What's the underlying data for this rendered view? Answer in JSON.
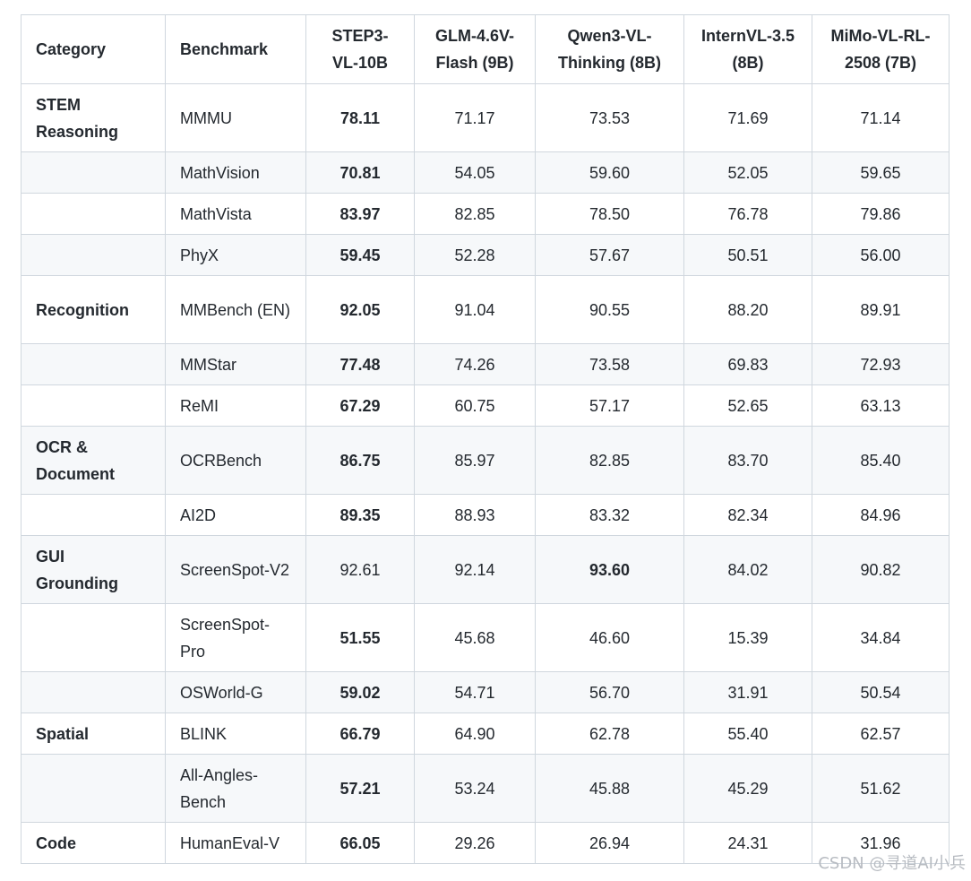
{
  "table": {
    "headers": [
      "Category",
      "Benchmark",
      "STEP3-VL-10B",
      "GLM-4.6V-Flash (9B)",
      "Qwen3-VL-Thinking (8B)",
      "InternVL-3.5 (8B)",
      "MiMo-VL-RL-2508 (7B)"
    ],
    "rows": [
      {
        "category": "STEM Reasoning",
        "benchmark": "MMMU",
        "values": [
          "78.11",
          "71.17",
          "73.53",
          "71.69",
          "71.14"
        ],
        "best": 0
      },
      {
        "category": "",
        "benchmark": "MathVision",
        "values": [
          "70.81",
          "54.05",
          "59.60",
          "52.05",
          "59.65"
        ],
        "best": 0
      },
      {
        "category": "",
        "benchmark": "MathVista",
        "values": [
          "83.97",
          "82.85",
          "78.50",
          "76.78",
          "79.86"
        ],
        "best": 0
      },
      {
        "category": "",
        "benchmark": "PhyX",
        "values": [
          "59.45",
          "52.28",
          "57.67",
          "50.51",
          "56.00"
        ],
        "best": 0
      },
      {
        "category": "Recognition",
        "benchmark": "MMBench (EN)",
        "values": [
          "92.05",
          "91.04",
          "90.55",
          "88.20",
          "89.91"
        ],
        "best": 0
      },
      {
        "category": "",
        "benchmark": "MMStar",
        "values": [
          "77.48",
          "74.26",
          "73.58",
          "69.83",
          "72.93"
        ],
        "best": 0
      },
      {
        "category": "",
        "benchmark": "ReMI",
        "values": [
          "67.29",
          "60.75",
          "57.17",
          "52.65",
          "63.13"
        ],
        "best": 0
      },
      {
        "category": "OCR & Document",
        "benchmark": "OCRBench",
        "values": [
          "86.75",
          "85.97",
          "82.85",
          "83.70",
          "85.40"
        ],
        "best": 0
      },
      {
        "category": "",
        "benchmark": "AI2D",
        "values": [
          "89.35",
          "88.93",
          "83.32",
          "82.34",
          "84.96"
        ],
        "best": 0
      },
      {
        "category": "GUI Grounding",
        "benchmark": "ScreenSpot-V2",
        "values": [
          "92.61",
          "92.14",
          "93.60",
          "84.02",
          "90.82"
        ],
        "best": 2
      },
      {
        "category": "",
        "benchmark": "ScreenSpot-Pro",
        "values": [
          "51.55",
          "45.68",
          "46.60",
          "15.39",
          "34.84"
        ],
        "best": 0
      },
      {
        "category": "",
        "benchmark": "OSWorld-G",
        "values": [
          "59.02",
          "54.71",
          "56.70",
          "31.91",
          "50.54"
        ],
        "best": 0
      },
      {
        "category": "Spatial",
        "benchmark": "BLINK",
        "values": [
          "66.79",
          "64.90",
          "62.78",
          "55.40",
          "62.57"
        ],
        "best": 0
      },
      {
        "category": "",
        "benchmark": "All-Angles-Bench",
        "values": [
          "57.21",
          "53.24",
          "45.88",
          "45.29",
          "51.62"
        ],
        "best": 0
      },
      {
        "category": "Code",
        "benchmark": "HumanEval-V",
        "values": [
          "66.05",
          "29.26",
          "26.94",
          "24.31",
          "31.96"
        ],
        "best": 0
      }
    ]
  },
  "watermark": "CSDN @寻道AI小兵"
}
